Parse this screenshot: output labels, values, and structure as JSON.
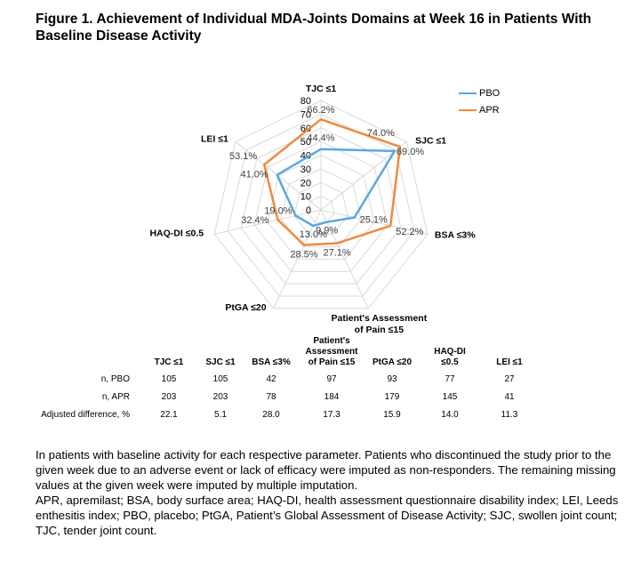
{
  "figure": {
    "title": "Figure 1. Achievement of Individual MDA-Joints Domains at Week 16 in Patients With Baseline Disease Activity"
  },
  "chart_data": {
    "type": "radar",
    "axes": [
      "TJC ≤1",
      "SJC ≤1",
      "BSA ≤3%",
      "Patient's Assessment of Pain ≤15",
      "PtGA ≤20",
      "HAQ-DI ≤0.5",
      "LEI ≤1"
    ],
    "axis_label_lines": [
      [
        "TJC ≤1"
      ],
      [
        "SJC ≤1"
      ],
      [
        "BSA ≤3%"
      ],
      [
        "Patient's Assessment",
        "of Pain ≤15"
      ],
      [
        "PtGA ≤20"
      ],
      [
        "HAQ-DI ≤0.5"
      ],
      [
        "LEI ≤1"
      ]
    ],
    "rlim": [
      0,
      80
    ],
    "rticks": [
      0,
      10,
      20,
      30,
      40,
      50,
      60,
      70,
      80
    ],
    "grid": true,
    "legend_position": "top-right",
    "series": [
      {
        "name": "PBO",
        "color": "#5aa7df",
        "values": [
          44.4,
          69.0,
          25.1,
          9.9,
          13.0,
          19.0,
          41.0
        ],
        "labels": [
          "44.4%",
          "69.0%",
          "25.1%",
          "9.9%",
          "13.0%",
          "19.0%",
          "41.0%"
        ]
      },
      {
        "name": "APR",
        "color": "#ee8a3f",
        "values": [
          66.2,
          74.0,
          52.2,
          27.1,
          28.5,
          32.4,
          53.1
        ],
        "labels": [
          "66.2%",
          "74.0%",
          "52.2%",
          "27.1%",
          "28.5%",
          "32.4%",
          "53.1%"
        ]
      }
    ]
  },
  "table": {
    "headers": [
      "TJC ≤1",
      "SJC ≤1",
      "BSA ≤3%",
      "Patient's Assessment of Pain ≤15",
      "PtGA ≤20",
      "HAQ-DI ≤0.5",
      "LEI ≤1"
    ],
    "header_lines": [
      [
        "TJC ≤1"
      ],
      [
        "SJC ≤1"
      ],
      [
        "BSA ≤3%"
      ],
      [
        "Patient's",
        "Assessment",
        "of Pain ≤15"
      ],
      [
        "PtGA ≤20"
      ],
      [
        "HAQ-DI",
        "≤0.5"
      ],
      [
        "LEI ≤1"
      ]
    ],
    "rows": [
      {
        "label": "n, PBO",
        "values": [
          "105",
          "105",
          "42",
          "97",
          "93",
          "77",
          "27"
        ]
      },
      {
        "label": "n, APR",
        "values": [
          "203",
          "203",
          "78",
          "184",
          "179",
          "145",
          "41"
        ]
      },
      {
        "label": "Adjusted difference, %",
        "values": [
          "22.1",
          "5.1",
          "28.0",
          "17.3",
          "15.9",
          "14.0",
          "11.3"
        ]
      }
    ]
  },
  "footnote": {
    "text1": "In patients with baseline activity for each respective parameter. Patients who discontinued the study prior to the given week due to an adverse event or lack of efficacy were imputed as non-responders. The remaining missing values at the given week were imputed by multiple imputation.",
    "text2": "APR, apremilast; BSA, body surface area; HAQ-DI, health assessment questionnaire disability index; LEI, Leeds enthesitis index; PBO, placebo; PtGA, Patient’s Global Assessment of Disease Activity; SJC, swollen joint count; TJC, tender joint count."
  }
}
